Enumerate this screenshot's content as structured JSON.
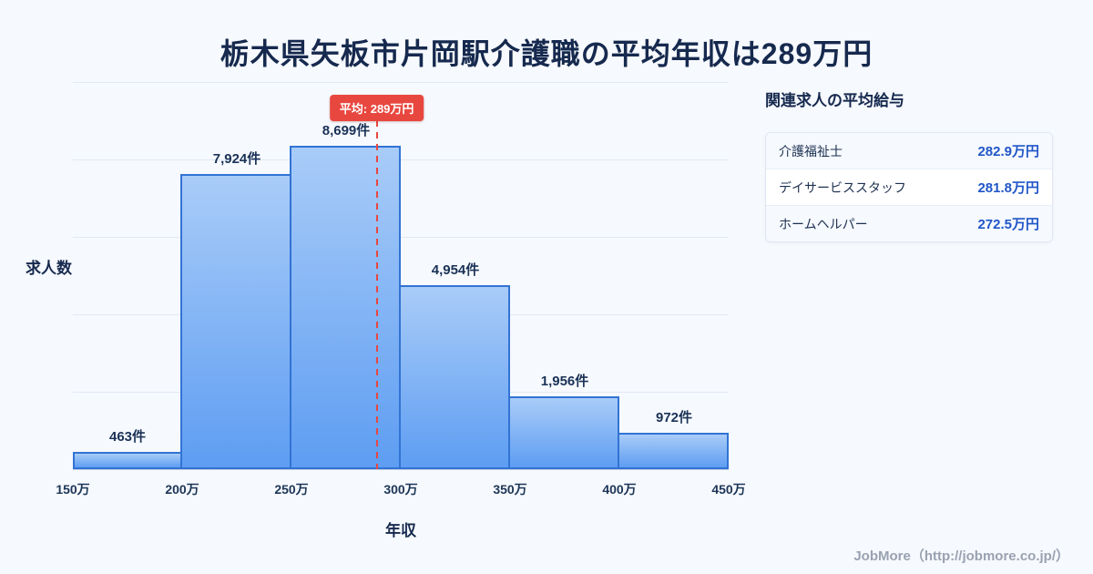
{
  "page": {
    "title": "栃木県矢板市片岡駅介護職の平均年収は289万円",
    "footer": "JobMore（http://jobmore.co.jp/）"
  },
  "chart_data": {
    "type": "bar",
    "title": "栃木県矢板市片岡駅介護職の平均年収は289万円",
    "xlabel": "年収",
    "ylabel": "求人数",
    "x_unit": "万円",
    "xlim": [
      150,
      450
    ],
    "ylim": [
      0,
      10400
    ],
    "bin_width": 50,
    "grid": true,
    "x_ticks": [
      "150万",
      "200万",
      "250万",
      "300万",
      "350万",
      "400万",
      "450万"
    ],
    "bins": [
      {
        "range_start": 150,
        "range_end": 200,
        "count": 463,
        "label": "463件"
      },
      {
        "range_start": 200,
        "range_end": 250,
        "count": 7924,
        "label": "7,924件"
      },
      {
        "range_start": 250,
        "range_end": 300,
        "count": 8699,
        "label": "8,699件"
      },
      {
        "range_start": 300,
        "range_end": 350,
        "count": 4954,
        "label": "4,954件"
      },
      {
        "range_start": 350,
        "range_end": 400,
        "count": 1956,
        "label": "1,956件"
      },
      {
        "range_start": 400,
        "range_end": 450,
        "count": 972,
        "label": "972件"
      }
    ],
    "average": {
      "value": 289,
      "label": "平均: 289万円"
    },
    "colors": {
      "bar_fill_top": "#a9ccf8",
      "bar_fill_bottom": "#5e9df2",
      "bar_border": "#3273d4",
      "average_line": "#e8473f",
      "title_text": "#16294e",
      "grid": "#e2e9f4",
      "salary_value": "#2156c8"
    }
  },
  "side_panel": {
    "title": "関連求人の平均給与",
    "rows": [
      {
        "job": "介護福祉士",
        "salary": "282.9万円"
      },
      {
        "job": "デイサービススタッフ",
        "salary": "281.8万円"
      },
      {
        "job": "ホームヘルパー",
        "salary": "272.5万円"
      }
    ]
  }
}
